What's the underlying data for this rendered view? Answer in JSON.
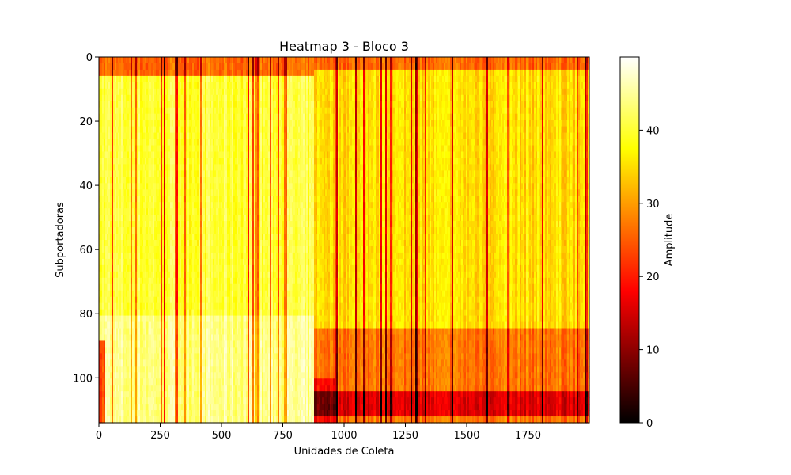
{
  "chart_data": {
    "type": "heatmap",
    "title": "Heatmap 3 - Bloco 3",
    "xlabel": "Unidades de Coleta",
    "ylabel": "Subportadoras",
    "xlim": [
      0,
      2000
    ],
    "ylim": [
      114,
      0
    ],
    "x_ticks": [
      0,
      250,
      500,
      750,
      1000,
      1250,
      1500,
      1750
    ],
    "y_ticks": [
      0,
      20,
      40,
      60,
      80,
      100
    ],
    "colormap": "hot",
    "colorbar": {
      "label": "Amplitude",
      "range": [
        0,
        50
      ],
      "ticks": [
        0,
        10,
        20,
        30,
        40
      ]
    },
    "regions": [
      {
        "x_range": [
          0,
          880
        ],
        "subcarriers": "0-114",
        "typical_amplitude": 40,
        "note_value": "high, bright yellow"
      },
      {
        "x_range": [
          880,
          2000
        ],
        "subcarriers": "0-85",
        "typical_amplitude": 35
      },
      {
        "x_range": [
          880,
          2000
        ],
        "subcarriers": "85-114",
        "typical_amplitude": 25
      },
      {
        "x_range": [
          0,
          2000
        ],
        "subcarriers": "0-5",
        "typical_amplitude": 22
      },
      {
        "x_range": [
          1000,
          2000
        ],
        "subcarriers": "105-112",
        "typical_amplitude": 15
      }
    ]
  }
}
